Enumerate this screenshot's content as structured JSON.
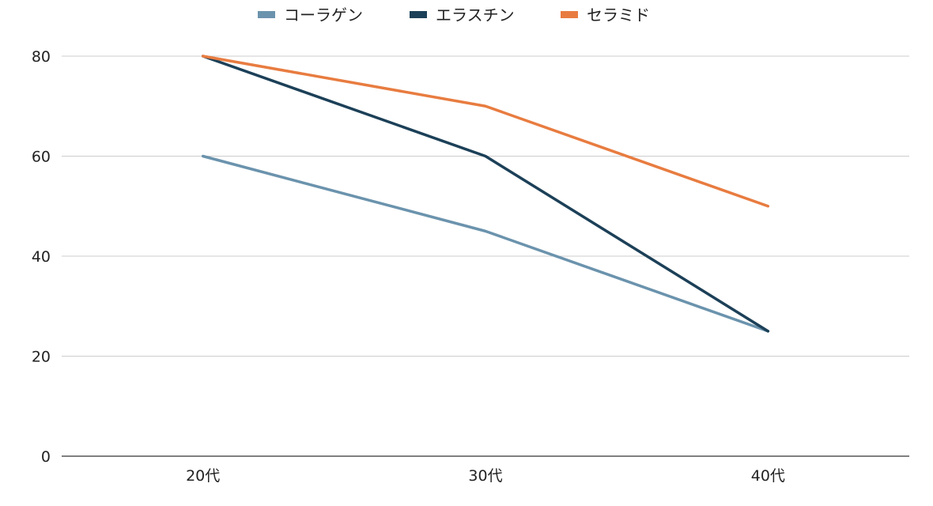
{
  "chart_data": {
    "type": "line",
    "title": "",
    "xlabel": "",
    "ylabel": "",
    "categories": [
      "20代",
      "30代",
      "40代"
    ],
    "series": [
      {
        "name": "コーラゲン",
        "color": "#6b93ad",
        "values": [
          60,
          45,
          25
        ]
      },
      {
        "name": "エラスチン",
        "color": "#1c4058",
        "values": [
          80,
          60,
          25
        ]
      },
      {
        "name": "セラミド",
        "color": "#e87c40",
        "values": [
          80,
          70,
          50
        ]
      }
    ],
    "ylim": [
      0,
      80
    ],
    "yticks": [
      0,
      20,
      40,
      60,
      80
    ],
    "grid": true,
    "legend_position": "top-center"
  }
}
